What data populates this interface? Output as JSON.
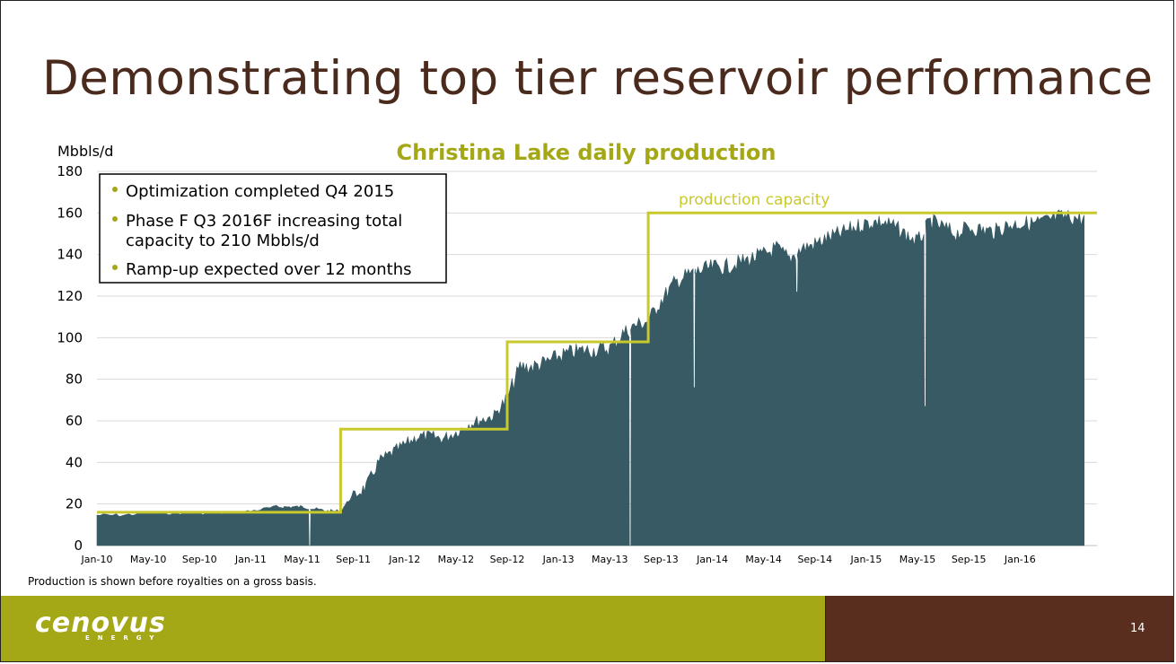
{
  "slide": {
    "title": "Demonstrating top tier reservoir performance",
    "footnote": "Production is shown before royalties on a gross basis.",
    "page_number": "14",
    "logo": {
      "text": "cenovus",
      "subtext": "ENERGY"
    }
  },
  "colors": {
    "title": "#4a2a1c",
    "chart_title": "#a4a716",
    "production_fill": "#375a64",
    "capacity_line": "#c9c92e",
    "footer_green": "#a4a716",
    "footer_brown": "#5a2e1e",
    "bullet": "#a4a716"
  },
  "chart_data": {
    "type": "area",
    "title": "Christina Lake daily production",
    "ylabel": "Mbbls/d",
    "xlabel": "",
    "ylim": [
      0,
      180
    ],
    "yticks": [
      0,
      20,
      40,
      60,
      80,
      100,
      120,
      140,
      160,
      180
    ],
    "xlim": [
      "2010-01",
      "2016-07"
    ],
    "xticks": [
      "Jan-10",
      "May-10",
      "Sep-10",
      "Jan-11",
      "May-11",
      "Sep-11",
      "Jan-12",
      "May-12",
      "Sep-12",
      "Jan-13",
      "May-13",
      "Sep-13",
      "Jan-14",
      "May-14",
      "Sep-14",
      "Jan-15",
      "May-15",
      "Sep-15",
      "Jan-16"
    ],
    "grid": true,
    "legend": "none",
    "callout": {
      "bullets": [
        "Optimization completed Q4 2015",
        "Phase F Q3 2016F increasing total capacity to 210 Mbbls/d",
        "Ramp-up expected over 12 months"
      ],
      "placement": "top-left"
    },
    "series": [
      {
        "name": "production capacity",
        "kind": "step-line",
        "steps": [
          {
            "from": "2010-01",
            "value": 16
          },
          {
            "from": "2011-08",
            "value": 56
          },
          {
            "from": "2012-09",
            "value": 98
          },
          {
            "from": "2013-08",
            "value": 160
          }
        ]
      },
      {
        "name": "",
        "kind": "area",
        "points": [
          [
            "2010-01",
            15
          ],
          [
            "2010-03",
            15
          ],
          [
            "2010-05",
            16
          ],
          [
            "2010-07",
            16
          ],
          [
            "2010-09",
            16
          ],
          [
            "2010-11",
            16
          ],
          [
            "2011-01",
            17
          ],
          [
            "2011-03",
            19
          ],
          [
            "2011-04",
            19
          ],
          [
            "2011-05",
            19
          ],
          [
            "2011-06",
            18
          ],
          [
            "2011-07",
            17
          ],
          [
            "2011-08",
            17
          ],
          [
            "2011-09",
            25
          ],
          [
            "2011-10",
            30
          ],
          [
            "2011-11",
            42
          ],
          [
            "2011-12",
            46
          ],
          [
            "2012-01",
            50
          ],
          [
            "2012-02",
            54
          ],
          [
            "2012-03",
            54
          ],
          [
            "2012-04",
            53
          ],
          [
            "2012-05",
            56
          ],
          [
            "2012-06",
            60
          ],
          [
            "2012-07",
            62
          ],
          [
            "2012-08",
            64
          ],
          [
            "2012-09",
            73
          ],
          [
            "2012-10",
            88
          ],
          [
            "2012-11",
            88
          ],
          [
            "2012-12",
            90
          ],
          [
            "2013-01",
            93
          ],
          [
            "2013-02",
            95
          ],
          [
            "2013-03",
            96
          ],
          [
            "2013-04",
            96
          ],
          [
            "2013-05",
            97
          ],
          [
            "2013-06",
            104
          ],
          [
            "2013-07",
            108
          ],
          [
            "2013-08",
            110
          ],
          [
            "2013-09",
            120
          ],
          [
            "2013-10",
            128
          ],
          [
            "2013-11",
            132
          ],
          [
            "2013-12",
            134
          ],
          [
            "2014-01",
            136
          ],
          [
            "2014-02",
            136
          ],
          [
            "2014-03",
            138
          ],
          [
            "2014-04",
            140
          ],
          [
            "2014-05",
            142
          ],
          [
            "2014-06",
            145
          ],
          [
            "2014-07",
            140
          ],
          [
            "2014-08",
            145
          ],
          [
            "2014-09",
            147
          ],
          [
            "2014-10",
            150
          ],
          [
            "2014-11",
            152
          ],
          [
            "2014-12",
            155
          ],
          [
            "2015-01",
            157
          ],
          [
            "2015-02",
            158
          ],
          [
            "2015-03",
            156
          ],
          [
            "2015-04",
            152
          ],
          [
            "2015-05",
            148
          ],
          [
            "2015-06",
            158
          ],
          [
            "2015-07",
            155
          ],
          [
            "2015-08",
            152
          ],
          [
            "2015-09",
            155
          ],
          [
            "2015-10",
            154
          ],
          [
            "2015-11",
            153
          ],
          [
            "2015-12",
            156
          ],
          [
            "2016-01",
            157
          ],
          [
            "2016-02",
            157
          ],
          [
            "2016-03",
            158
          ],
          [
            "2016-04",
            160
          ],
          [
            "2016-05",
            160
          ],
          [
            "2016-06",
            159
          ]
        ],
        "dips": [
          {
            "date": "2011-05",
            "value": 0
          },
          {
            "date": "2013-06",
            "value": 0
          },
          {
            "date": "2013-11",
            "value": 76
          },
          {
            "date": "2014-07",
            "value": 122
          },
          {
            "date": "2015-05",
            "value": 67
          }
        ]
      }
    ],
    "annotations": [
      "production capacity"
    ]
  }
}
